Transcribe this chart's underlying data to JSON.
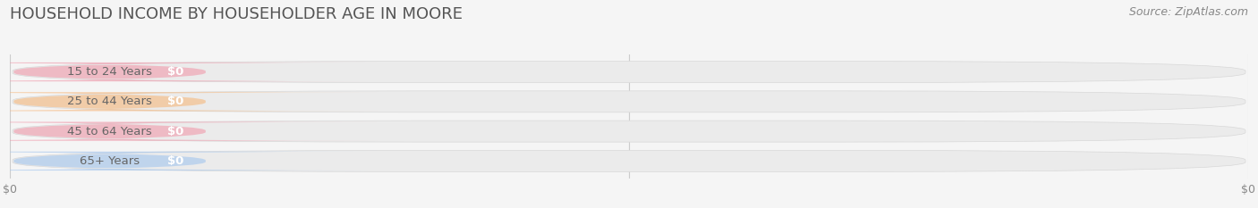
{
  "title": "HOUSEHOLD INCOME BY HOUSEHOLDER AGE IN MOORE",
  "source_text": "Source: ZipAtlas.com",
  "categories": [
    "15 to 24 Years",
    "25 to 44 Years",
    "45 to 64 Years",
    "65+ Years"
  ],
  "values": [
    0,
    0,
    0,
    0
  ],
  "bar_colors": [
    "#f0a0b0",
    "#f5bc85",
    "#f0a0b0",
    "#a8c8ee"
  ],
  "bar_bg_color": "#ececec",
  "bar_edge_color": "#d8d8d8",
  "value_labels": [
    "$0",
    "$0",
    "$0",
    "$0"
  ],
  "x_tick_labels": [
    "$0",
    "$0"
  ],
  "xlim": [
    0,
    1
  ],
  "fig_bg_color": "#f5f5f5",
  "title_color": "#555555",
  "title_fontsize": 13,
  "label_fontsize": 9.5,
  "source_fontsize": 9,
  "bar_height": 0.72
}
